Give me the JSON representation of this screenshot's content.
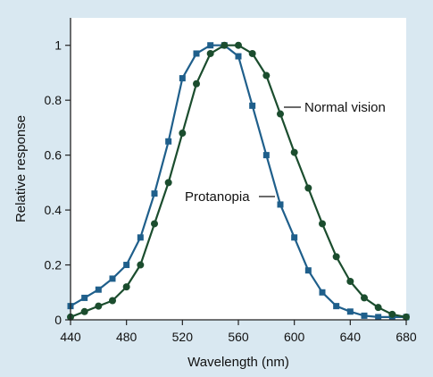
{
  "chart_data": {
    "type": "line",
    "title": "",
    "xlabel": "Wavelength (nm)",
    "ylabel": "Relative response",
    "xlim": [
      440,
      680
    ],
    "ylim": [
      0,
      1.1
    ],
    "xticks": [
      440,
      480,
      520,
      560,
      600,
      640,
      680
    ],
    "yticks": [
      0,
      0.2,
      0.4,
      0.6,
      0.8,
      1
    ],
    "ytick_labels": [
      "0",
      "0.2",
      "0.4",
      "0.6",
      "0.8",
      "1"
    ],
    "grid": false,
    "legend": "none",
    "background_color": "#d9e8f1",
    "plot_background_color": "#ffffff",
    "series": [
      {
        "name": "Protanopia",
        "color": "#1f5f8b",
        "marker": "square",
        "x": [
          440,
          450,
          460,
          470,
          480,
          490,
          500,
          510,
          520,
          530,
          540,
          550,
          560,
          570,
          580,
          590,
          600,
          610,
          620,
          630,
          640,
          650,
          660,
          670,
          680
        ],
        "y": [
          0.05,
          0.08,
          0.11,
          0.15,
          0.2,
          0.3,
          0.46,
          0.65,
          0.88,
          0.97,
          1.0,
          1.0,
          0.96,
          0.78,
          0.6,
          0.42,
          0.3,
          0.18,
          0.1,
          0.05,
          0.03,
          0.015,
          0.01,
          0.01,
          0.01
        ]
      },
      {
        "name": "Normal vision",
        "color": "#1b4d2e",
        "marker": "circle",
        "x": [
          440,
          450,
          460,
          470,
          480,
          490,
          500,
          510,
          520,
          530,
          540,
          550,
          560,
          570,
          580,
          590,
          600,
          610,
          620,
          630,
          640,
          650,
          660,
          670,
          680
        ],
        "y": [
          0.01,
          0.03,
          0.05,
          0.07,
          0.12,
          0.2,
          0.35,
          0.5,
          0.68,
          0.86,
          0.97,
          1.0,
          1.0,
          0.97,
          0.89,
          0.75,
          0.61,
          0.48,
          0.35,
          0.23,
          0.14,
          0.08,
          0.045,
          0.02,
          0.01
        ]
      }
    ],
    "annotations": [
      {
        "text": "Normal vision",
        "series": "Normal vision"
      },
      {
        "text": "Protanopia",
        "series": "Protanopia"
      }
    ]
  }
}
